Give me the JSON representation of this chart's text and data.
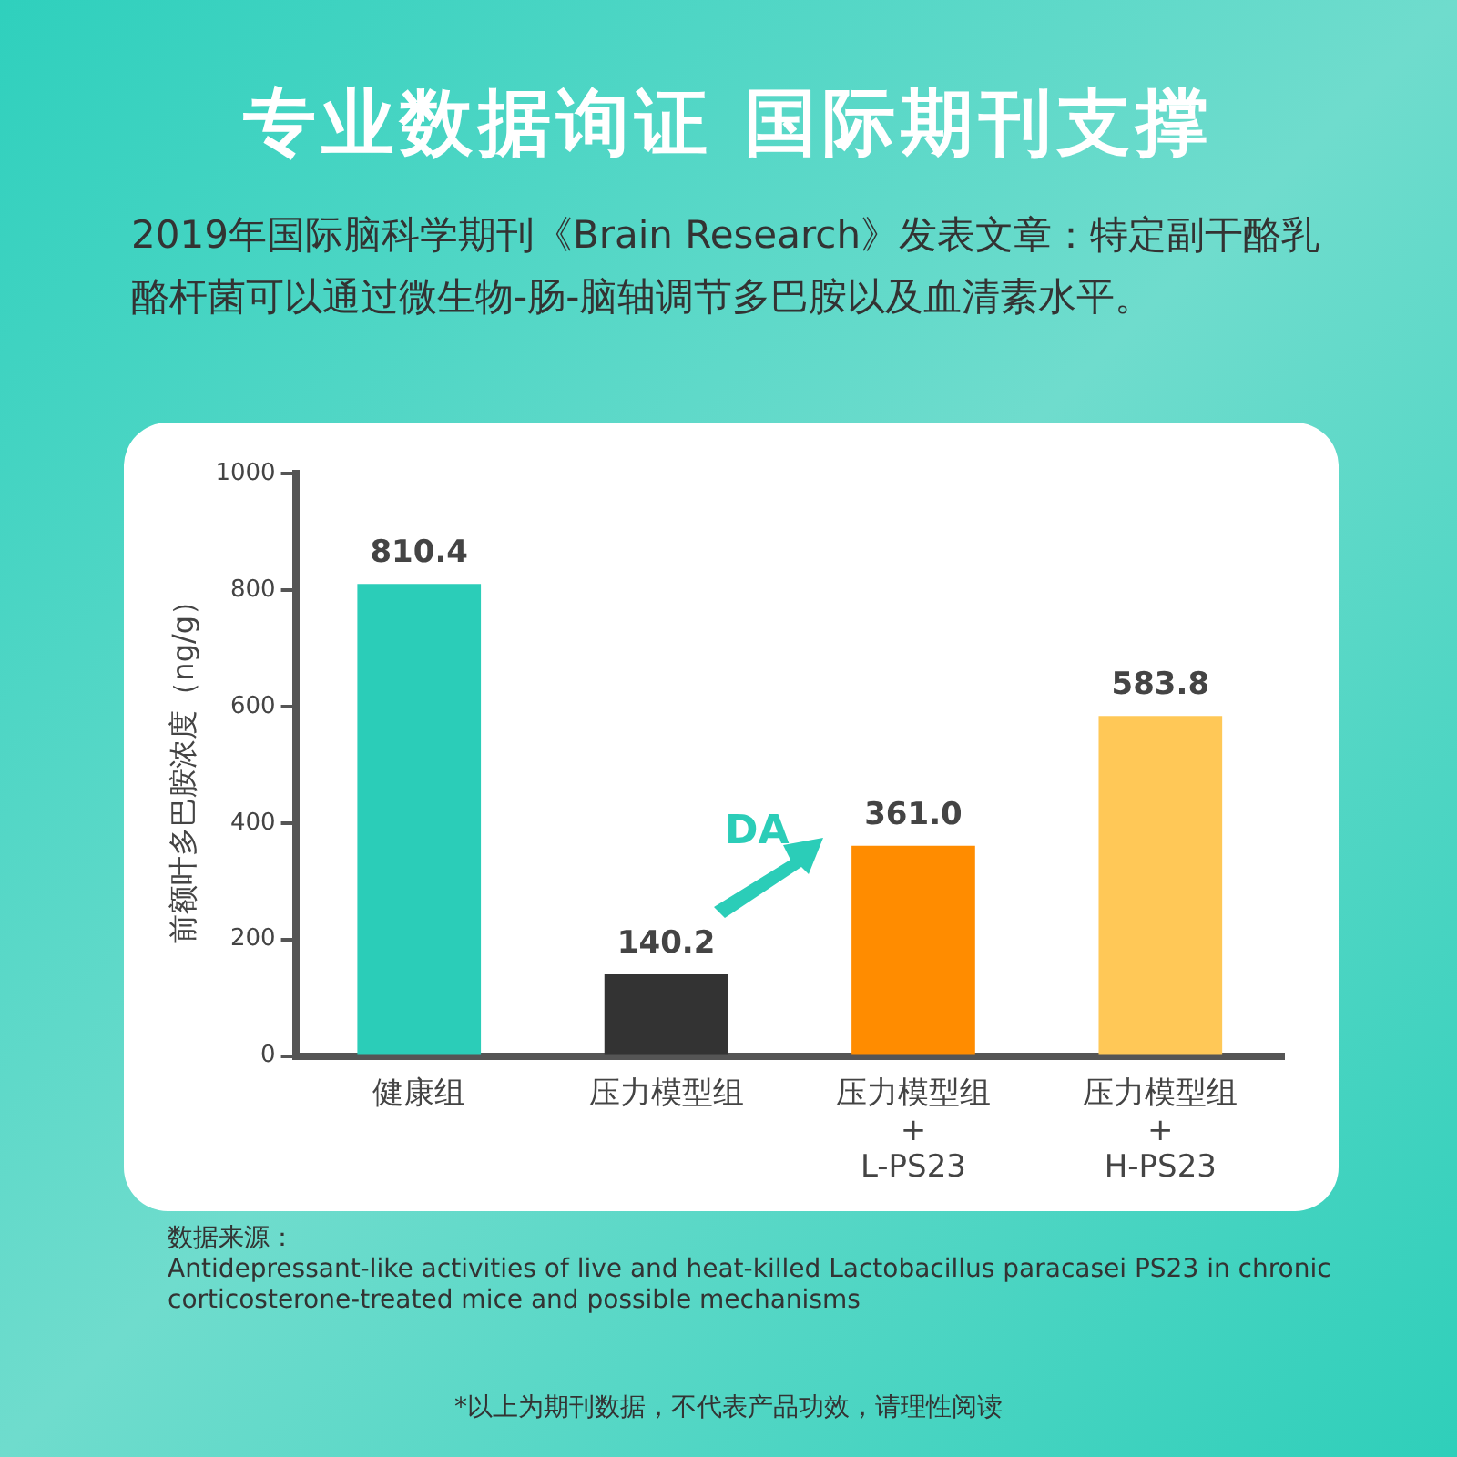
{
  "chart_data": {
    "type": "bar",
    "title": "专业数据询证 国际期刊支撑",
    "subtitle": "2019年国际脑科学期刊《Brain Research》发表文章：特定副干酪乳酪杆菌可以通过微生物-肠-脑轴调节多巴胺以及血清素水平。",
    "ylabel": "前额叶多巴胺浓度（ng/g）",
    "categories": [
      "健康组",
      "压力模型组",
      "压力模型组\n+\nL-PS23",
      "压力模型组\n+\nH-PS23"
    ],
    "values": [
      810.4,
      140.2,
      361.0,
      583.8
    ],
    "value_labels": [
      "810.4",
      "140.2",
      "361.0",
      "583.8"
    ],
    "colors": [
      "#2bcdb8",
      "#333333",
      "#ff8c00",
      "#ffc857"
    ],
    "ylim": [
      0,
      1000
    ],
    "yticks": [
      0,
      200,
      400,
      600,
      800,
      1000
    ],
    "grid": false,
    "legend": false,
    "annotations": [
      "DA",
      "数据来源：",
      "Antidepressant-like activities of live and heat-killed Lactobacillus paracasei PS23 in chronic corticosterone-treated mice and possible mechanisms",
      "*以上为期刊数据，不代表产品功效，请理性阅读"
    ]
  }
}
